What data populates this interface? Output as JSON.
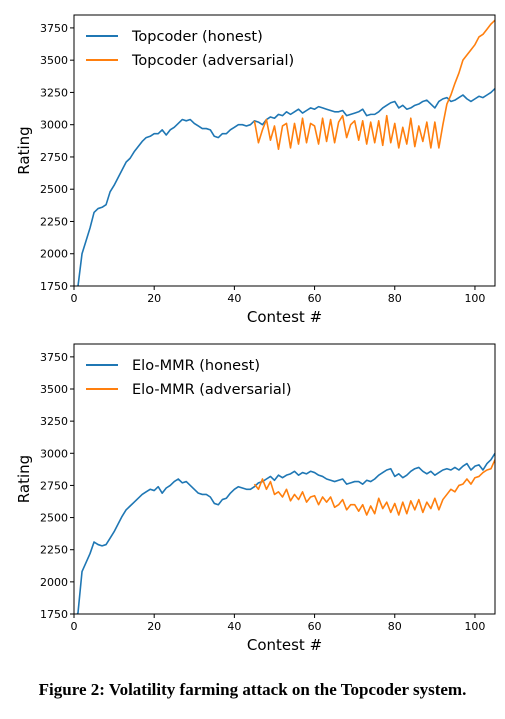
{
  "caption": "Figure 2: Volatility farming attack on the Topcoder system.",
  "colors": {
    "honest": "#1f77b4",
    "adversarial": "#ff7f0e"
  },
  "chart_data": [
    {
      "type": "line",
      "xlabel": "Contest #",
      "ylabel": "Rating",
      "xlim": [
        0,
        105
      ],
      "ylim": [
        1750,
        3850
      ],
      "xticks": [
        0,
        20,
        40,
        60,
        80,
        100
      ],
      "yticks": [
        1750,
        2000,
        2250,
        2500,
        2750,
        3000,
        3250,
        3500,
        3750
      ],
      "legend": "top-left",
      "grid": false,
      "series": [
        {
          "name": "Topcoder (honest)",
          "x": [
            0,
            1,
            2,
            3,
            4,
            5,
            6,
            7,
            8,
            9,
            10,
            11,
            12,
            13,
            14,
            15,
            16,
            17,
            18,
            19,
            20,
            21,
            22,
            23,
            24,
            25,
            26,
            27,
            28,
            29,
            30,
            31,
            32,
            33,
            34,
            35,
            36,
            37,
            38,
            39,
            40,
            41,
            42,
            43,
            44,
            45,
            46,
            47,
            48,
            49,
            50,
            51,
            52,
            53,
            54,
            55,
            56,
            57,
            58,
            59,
            60,
            61,
            62,
            63,
            64,
            65,
            66,
            67,
            68,
            69,
            70,
            71,
            72,
            73,
            74,
            75,
            76,
            77,
            78,
            79,
            80,
            81,
            82,
            83,
            84,
            85,
            86,
            87,
            88,
            89,
            90,
            91,
            92,
            93,
            94,
            95,
            96,
            97,
            98,
            99,
            100,
            101,
            102,
            103,
            104,
            105
          ],
          "y": [
            1700,
            1750,
            2000,
            2100,
            2200,
            2320,
            2350,
            2360,
            2380,
            2480,
            2530,
            2590,
            2650,
            2710,
            2740,
            2790,
            2830,
            2870,
            2900,
            2910,
            2930,
            2930,
            2960,
            2920,
            2960,
            2980,
            3010,
            3040,
            3030,
            3040,
            3010,
            2990,
            2970,
            2970,
            2960,
            2910,
            2900,
            2930,
            2930,
            2960,
            2980,
            3000,
            3000,
            2990,
            3000,
            3030,
            3020,
            3000,
            3040,
            3060,
            3050,
            3080,
            3070,
            3100,
            3080,
            3100,
            3120,
            3090,
            3110,
            3130,
            3120,
            3140,
            3130,
            3120,
            3110,
            3100,
            3100,
            3110,
            3070,
            3080,
            3090,
            3100,
            3120,
            3070,
            3080,
            3080,
            3100,
            3130,
            3150,
            3170,
            3180,
            3130,
            3150,
            3120,
            3130,
            3150,
            3160,
            3180,
            3190,
            3160,
            3130,
            3180,
            3200,
            3210,
            3180,
            3190,
            3210,
            3230,
            3200,
            3180,
            3200,
            3220,
            3210,
            3230,
            3250,
            3280
          ]
        },
        {
          "name": "Topcoder (adversarial)",
          "x": [
            45,
            46,
            47,
            48,
            49,
            50,
            51,
            52,
            53,
            54,
            55,
            56,
            57,
            58,
            59,
            60,
            61,
            62,
            63,
            64,
            65,
            66,
            67,
            68,
            69,
            70,
            71,
            72,
            73,
            74,
            75,
            76,
            77,
            78,
            79,
            80,
            81,
            82,
            83,
            84,
            85,
            86,
            87,
            88,
            89,
            90,
            91,
            92,
            93,
            94,
            95,
            96,
            97,
            98,
            99,
            100,
            101,
            102,
            103,
            104,
            105
          ],
          "y": [
            3030,
            2860,
            2960,
            3040,
            2880,
            2990,
            2810,
            2990,
            3010,
            2820,
            3010,
            2850,
            3050,
            2860,
            3010,
            2990,
            2850,
            3050,
            2870,
            3040,
            2860,
            3020,
            3070,
            2900,
            3000,
            3030,
            2880,
            3030,
            2850,
            3020,
            2860,
            3030,
            2840,
            3070,
            2860,
            3010,
            2820,
            2980,
            2850,
            3050,
            2830,
            2990,
            2870,
            3020,
            2820,
            3020,
            2820,
            3000,
            3160,
            3230,
            3320,
            3400,
            3500,
            3540,
            3580,
            3620,
            3680,
            3700,
            3740,
            3780,
            3810
          ]
        }
      ]
    },
    {
      "type": "line",
      "xlabel": "Contest #",
      "ylabel": "Rating",
      "xlim": [
        0,
        105
      ],
      "ylim": [
        1750,
        3850
      ],
      "xticks": [
        0,
        20,
        40,
        60,
        80,
        100
      ],
      "yticks": [
        1750,
        2000,
        2250,
        2500,
        2750,
        3000,
        3250,
        3500,
        3750
      ],
      "legend": "top-left",
      "grid": false,
      "series": [
        {
          "name": "Elo-MMR (honest)",
          "x": [
            0,
            1,
            2,
            3,
            4,
            5,
            6,
            7,
            8,
            9,
            10,
            11,
            12,
            13,
            14,
            15,
            16,
            17,
            18,
            19,
            20,
            21,
            22,
            23,
            24,
            25,
            26,
            27,
            28,
            29,
            30,
            31,
            32,
            33,
            34,
            35,
            36,
            37,
            38,
            39,
            40,
            41,
            42,
            43,
            44,
            45,
            46,
            47,
            48,
            49,
            50,
            51,
            52,
            53,
            54,
            55,
            56,
            57,
            58,
            59,
            60,
            61,
            62,
            63,
            64,
            65,
            66,
            67,
            68,
            69,
            70,
            71,
            72,
            73,
            74,
            75,
            76,
            77,
            78,
            79,
            80,
            81,
            82,
            83,
            84,
            85,
            86,
            87,
            88,
            89,
            90,
            91,
            92,
            93,
            94,
            95,
            96,
            97,
            98,
            99,
            100,
            101,
            102,
            103,
            104,
            105
          ],
          "y": [
            1700,
            1760,
            2080,
            2150,
            2220,
            2310,
            2290,
            2280,
            2290,
            2340,
            2390,
            2450,
            2510,
            2560,
            2590,
            2620,
            2650,
            2680,
            2700,
            2720,
            2710,
            2740,
            2690,
            2730,
            2750,
            2780,
            2800,
            2770,
            2780,
            2750,
            2720,
            2690,
            2680,
            2680,
            2660,
            2610,
            2600,
            2640,
            2650,
            2690,
            2720,
            2740,
            2730,
            2720,
            2720,
            2740,
            2770,
            2780,
            2800,
            2820,
            2790,
            2830,
            2810,
            2830,
            2840,
            2860,
            2830,
            2850,
            2840,
            2860,
            2850,
            2830,
            2820,
            2800,
            2790,
            2780,
            2790,
            2800,
            2760,
            2770,
            2780,
            2780,
            2760,
            2790,
            2780,
            2800,
            2830,
            2850,
            2870,
            2880,
            2820,
            2840,
            2810,
            2830,
            2860,
            2880,
            2890,
            2860,
            2840,
            2860,
            2830,
            2850,
            2870,
            2880,
            2870,
            2890,
            2870,
            2900,
            2920,
            2870,
            2900,
            2910,
            2870,
            2920,
            2950,
            3000
          ]
        },
        {
          "name": "Elo-MMR (adversarial)",
          "x": [
            45,
            46,
            47,
            48,
            49,
            50,
            51,
            52,
            53,
            54,
            55,
            56,
            57,
            58,
            59,
            60,
            61,
            62,
            63,
            64,
            65,
            66,
            67,
            68,
            69,
            70,
            71,
            72,
            73,
            74,
            75,
            76,
            77,
            78,
            79,
            80,
            81,
            82,
            83,
            84,
            85,
            86,
            87,
            88,
            89,
            90,
            91,
            92,
            93,
            94,
            95,
            96,
            97,
            98,
            99,
            100,
            101,
            102,
            103,
            104,
            105
          ],
          "y": [
            2760,
            2720,
            2800,
            2720,
            2780,
            2680,
            2700,
            2660,
            2720,
            2630,
            2680,
            2640,
            2700,
            2620,
            2660,
            2670,
            2600,
            2660,
            2620,
            2660,
            2580,
            2600,
            2640,
            2560,
            2600,
            2600,
            2550,
            2600,
            2520,
            2590,
            2530,
            2650,
            2570,
            2620,
            2540,
            2610,
            2520,
            2620,
            2530,
            2630,
            2560,
            2640,
            2540,
            2620,
            2570,
            2650,
            2560,
            2640,
            2680,
            2720,
            2700,
            2750,
            2760,
            2800,
            2760,
            2810,
            2820,
            2850,
            2870,
            2880,
            2950
          ]
        }
      ]
    }
  ]
}
